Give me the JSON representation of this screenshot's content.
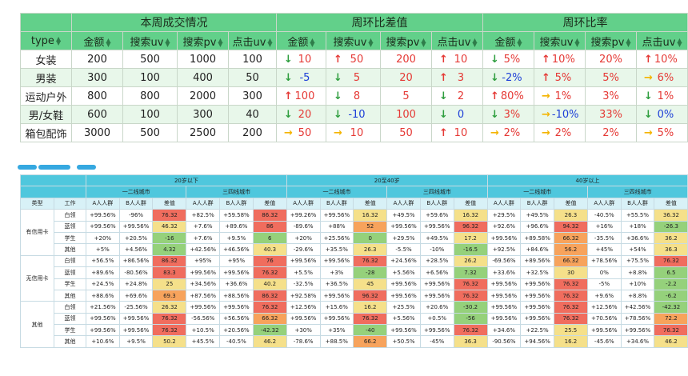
{
  "top_table": {
    "group_headers": [
      "本周成交情况",
      "周环比差值",
      "周环比率"
    ],
    "columns": [
      "type",
      "金额",
      "搜索uv",
      "搜索pv",
      "点击uv",
      "金额",
      "搜索uv",
      "搜索pv",
      "点击uv",
      "金额",
      "搜索uv",
      "搜索pv",
      "点击uv"
    ],
    "rows": [
      {
        "type": "女装",
        "amount": "200",
        "search_uv": "500",
        "search_pv": "1000",
        "click_uv": "100",
        "diff": [
          {
            "a": "down",
            "v": "10",
            "c": "r"
          },
          {
            "a": "up",
            "v": "50",
            "c": "r"
          },
          {
            "a": "",
            "v": "200",
            "c": "r"
          },
          {
            "a": "up",
            "v": "10",
            "c": "r"
          }
        ],
        "rate": [
          {
            "a": "down",
            "v": "5%",
            "c": "r"
          },
          {
            "a": "up",
            "v": "10%",
            "c": "r"
          },
          {
            "a": "",
            "v": "20%",
            "c": "r"
          },
          {
            "a": "up",
            "v": "10%",
            "c": "r"
          }
        ]
      },
      {
        "type": "男装",
        "amount": "300",
        "search_uv": "100",
        "search_pv": "400",
        "click_uv": "50",
        "diff": [
          {
            "a": "down",
            "v": "-5",
            "c": "b"
          },
          {
            "a": "down",
            "v": "5",
            "c": "r"
          },
          {
            "a": "",
            "v": "20",
            "c": "r"
          },
          {
            "a": "up",
            "v": "3",
            "c": "r"
          }
        ],
        "rate": [
          {
            "a": "down",
            "v": "-2%",
            "c": "b"
          },
          {
            "a": "up",
            "v": "5%",
            "c": "r"
          },
          {
            "a": "",
            "v": "5%",
            "c": "r"
          },
          {
            "a": "right",
            "v": "6%",
            "c": "r"
          }
        ]
      },
      {
        "type": "运动户外",
        "amount": "800",
        "search_uv": "800",
        "search_pv": "2000",
        "click_uv": "300",
        "diff": [
          {
            "a": "up",
            "v": "100",
            "c": "r"
          },
          {
            "a": "down",
            "v": "8",
            "c": "r"
          },
          {
            "a": "",
            "v": "5",
            "c": "r"
          },
          {
            "a": "down",
            "v": "2",
            "c": "r"
          }
        ],
        "rate": [
          {
            "a": "up",
            "v": "80%",
            "c": "r"
          },
          {
            "a": "right",
            "v": "1%",
            "c": "r"
          },
          {
            "a": "",
            "v": "3%",
            "c": "r"
          },
          {
            "a": "down",
            "v": "1%",
            "c": "r"
          }
        ]
      },
      {
        "type": "男/女鞋",
        "amount": "600",
        "search_uv": "100",
        "search_pv": "300",
        "click_uv": "40",
        "diff": [
          {
            "a": "down",
            "v": "20",
            "c": "r"
          },
          {
            "a": "down",
            "v": "-10",
            "c": "b"
          },
          {
            "a": "",
            "v": "100",
            "c": "r"
          },
          {
            "a": "down",
            "v": "0",
            "c": "b"
          }
        ],
        "rate": [
          {
            "a": "down",
            "v": "3%",
            "c": "r"
          },
          {
            "a": "right",
            "v": "-10%",
            "c": "b"
          },
          {
            "a": "",
            "v": "33%",
            "c": "r"
          },
          {
            "a": "down",
            "v": "0%",
            "c": "b"
          }
        ]
      },
      {
        "type": "箱包配饰",
        "amount": "3000",
        "search_uv": "500",
        "search_pv": "2500",
        "click_uv": "200",
        "diff": [
          {
            "a": "right",
            "v": "50",
            "c": "r"
          },
          {
            "a": "right",
            "v": "10",
            "c": "r"
          },
          {
            "a": "",
            "v": "50",
            "c": "r"
          },
          {
            "a": "up",
            "v": "10",
            "c": "r"
          }
        ],
        "rate": [
          {
            "a": "right",
            "v": "2%",
            "c": "r"
          },
          {
            "a": "right",
            "v": "2%",
            "c": "r"
          },
          {
            "a": "",
            "v": "2%",
            "c": "r"
          },
          {
            "a": "right",
            "v": "5%",
            "c": "r"
          }
        ]
      }
    ]
  },
  "bottom_table": {
    "age_groups": [
      "20岁以下",
      "20至40岁",
      "40岁以上"
    ],
    "city_groups": [
      "一二线城市",
      "三四线城市"
    ],
    "row_header_labels": [
      "类型",
      "工作"
    ],
    "metric_labels": [
      "A人人群",
      "B人人群",
      "差值"
    ],
    "groups": [
      {
        "name": "有信用卡",
        "rows": [
          {
            "job": "白领",
            "cells": [
              "+99.56%",
              "-96%",
              "76.32",
              "+82.5%",
              "+59.58%",
              "86.32",
              "+99.26%",
              "+99.56%",
              "16.32",
              "+49.5%",
              "+59.6%",
              "16.32",
              "+29.5%",
              "+49.5%",
              "26.3",
              "-40.5%",
              "+55.5%",
              "36.32"
            ]
          },
          {
            "job": "蓝领",
            "cells": [
              "+99.56%",
              "+99.56%",
              "46.32",
              "+7.6%",
              "+89.6%",
              "86",
              "-89.6%",
              "+88%",
              "52",
              "+99.56%",
              "+99.56%",
              "96.32",
              "+92.6%",
              "+96.6%",
              "94.32",
              "+16%",
              "+18%",
              "-26.3"
            ]
          },
          {
            "job": "学生",
            "cells": [
              "+20%",
              "+20.5%",
              "-16",
              "+7.6%",
              "+9.5%",
              "6",
              "+20%",
              "+25.56%",
              "0",
              "+29.5%",
              "+49.5%",
              "17.2",
              "+99.56%",
              "+89.58%",
              "66.32",
              "-35.5%",
              "+36.6%",
              "36.2"
            ]
          },
          {
            "job": "其他",
            "cells": [
              "+5%",
              "+4.56%",
              "4.32",
              "+42.56%",
              "+46.56%",
              "40.3",
              "-29.6%",
              "+35.5%",
              "26.3",
              "-5.5%",
              "-10%",
              "-16.5",
              "+92.5%",
              "+84.6%",
              "56.2",
              "+45%",
              "+54%",
              "36.3"
            ]
          }
        ]
      },
      {
        "name": "无信用卡",
        "rows": [
          {
            "job": "白领",
            "cells": [
              "+56.5%",
              "+86.56%",
              "86.32",
              "+95%",
              "+95%",
              "76",
              "+99.56%",
              "+99.56%",
              "76.32",
              "+24.56%",
              "+28.5%",
              "26.2",
              "-69.56%",
              "+89.56%",
              "66.32",
              "+78.56%",
              "+75.5%",
              "76.32"
            ]
          },
          {
            "job": "蓝领",
            "cells": [
              "+89.6%",
              "-80.56%",
              "83.3",
              "+99.56%",
              "+99.56%",
              "76.32",
              "+5.5%",
              "+3%",
              "-28",
              "+5.56%",
              "+6.56%",
              "7.32",
              "+33.6%",
              "+32.5%",
              "30",
              "0%",
              "+8.8%",
              "6.5"
            ]
          },
          {
            "job": "学生",
            "cells": [
              "+24.5%",
              "+24.8%",
              "25",
              "+34.56%",
              "+36.6%",
              "40.2",
              "-32.5%",
              "+36.5%",
              "45",
              "+99.56%",
              "+99.56%",
              "76.32",
              "+99.56%",
              "+99.56%",
              "76.32",
              "-5%",
              "+10%",
              "-2.2"
            ]
          },
          {
            "job": "其他",
            "cells": [
              "+88.6%",
              "+69.6%",
              "69.3",
              "+87.56%",
              "+88.56%",
              "86.32",
              "+92.58%",
              "+99.56%",
              "96.32",
              "+99.56%",
              "+99.56%",
              "76.32",
              "+99.56%",
              "+99.56%",
              "76.32",
              "+9.6%",
              "+8.8%",
              "-6.2"
            ]
          }
        ]
      },
      {
        "name": "其他",
        "rows": [
          {
            "job": "白领",
            "cells": [
              "+21.56%",
              "-25.56%",
              "26.32",
              "+99.56%",
              "+99.56%",
              "76.32",
              "+12.56%",
              "+15.6%",
              "16.2",
              "+25.5%",
              "+20.6%",
              "-30.2",
              "+99.56%",
              "+99.56%",
              "76.32",
              "+12.56%",
              "+42.56%",
              "-42.32"
            ]
          },
          {
            "job": "蓝领",
            "cells": [
              "+99.56%",
              "+99.56%",
              "76.32",
              "-56.56%",
              "+56.56%",
              "66.32",
              "+99.56%",
              "+99.56%",
              "76.32",
              "+5.56%",
              "+0.5%",
              "-56",
              "+99.56%",
              "+99.56%",
              "76.32",
              "+70.56%",
              "+78.56%",
              "72.2"
            ]
          },
          {
            "job": "学生",
            "cells": [
              "+99.56%",
              "+99.56%",
              "76.32",
              "+10.5%",
              "+20.56%",
              "-42.32",
              "+30%",
              "+35%",
              "-40",
              "+99.56%",
              "+99.56%",
              "76.32",
              "+34.6%",
              "+22.5%",
              "25.5",
              "+99.56%",
              "+99.56%",
              "76.32"
            ]
          },
          {
            "job": "其他",
            "cells": [
              "+10.6%",
              "+9.5%",
              "50.2",
              "+45.5%",
              "-40.5%",
              "46.2",
              "-78.6%",
              "+88.5%",
              "66.2",
              "+50.5%",
              "-45%",
              "36.3",
              "-90.56%",
              "+94.56%",
              "16.2",
              "-45.6%",
              "+34.6%",
              "46.2"
            ]
          }
        ]
      }
    ],
    "colors": {
      "red": "#f06d5e",
      "orange": "#f7a35c",
      "yellow": "#f5e08a",
      "green": "#95d17b",
      "header": "#4fc7dd"
    }
  }
}
